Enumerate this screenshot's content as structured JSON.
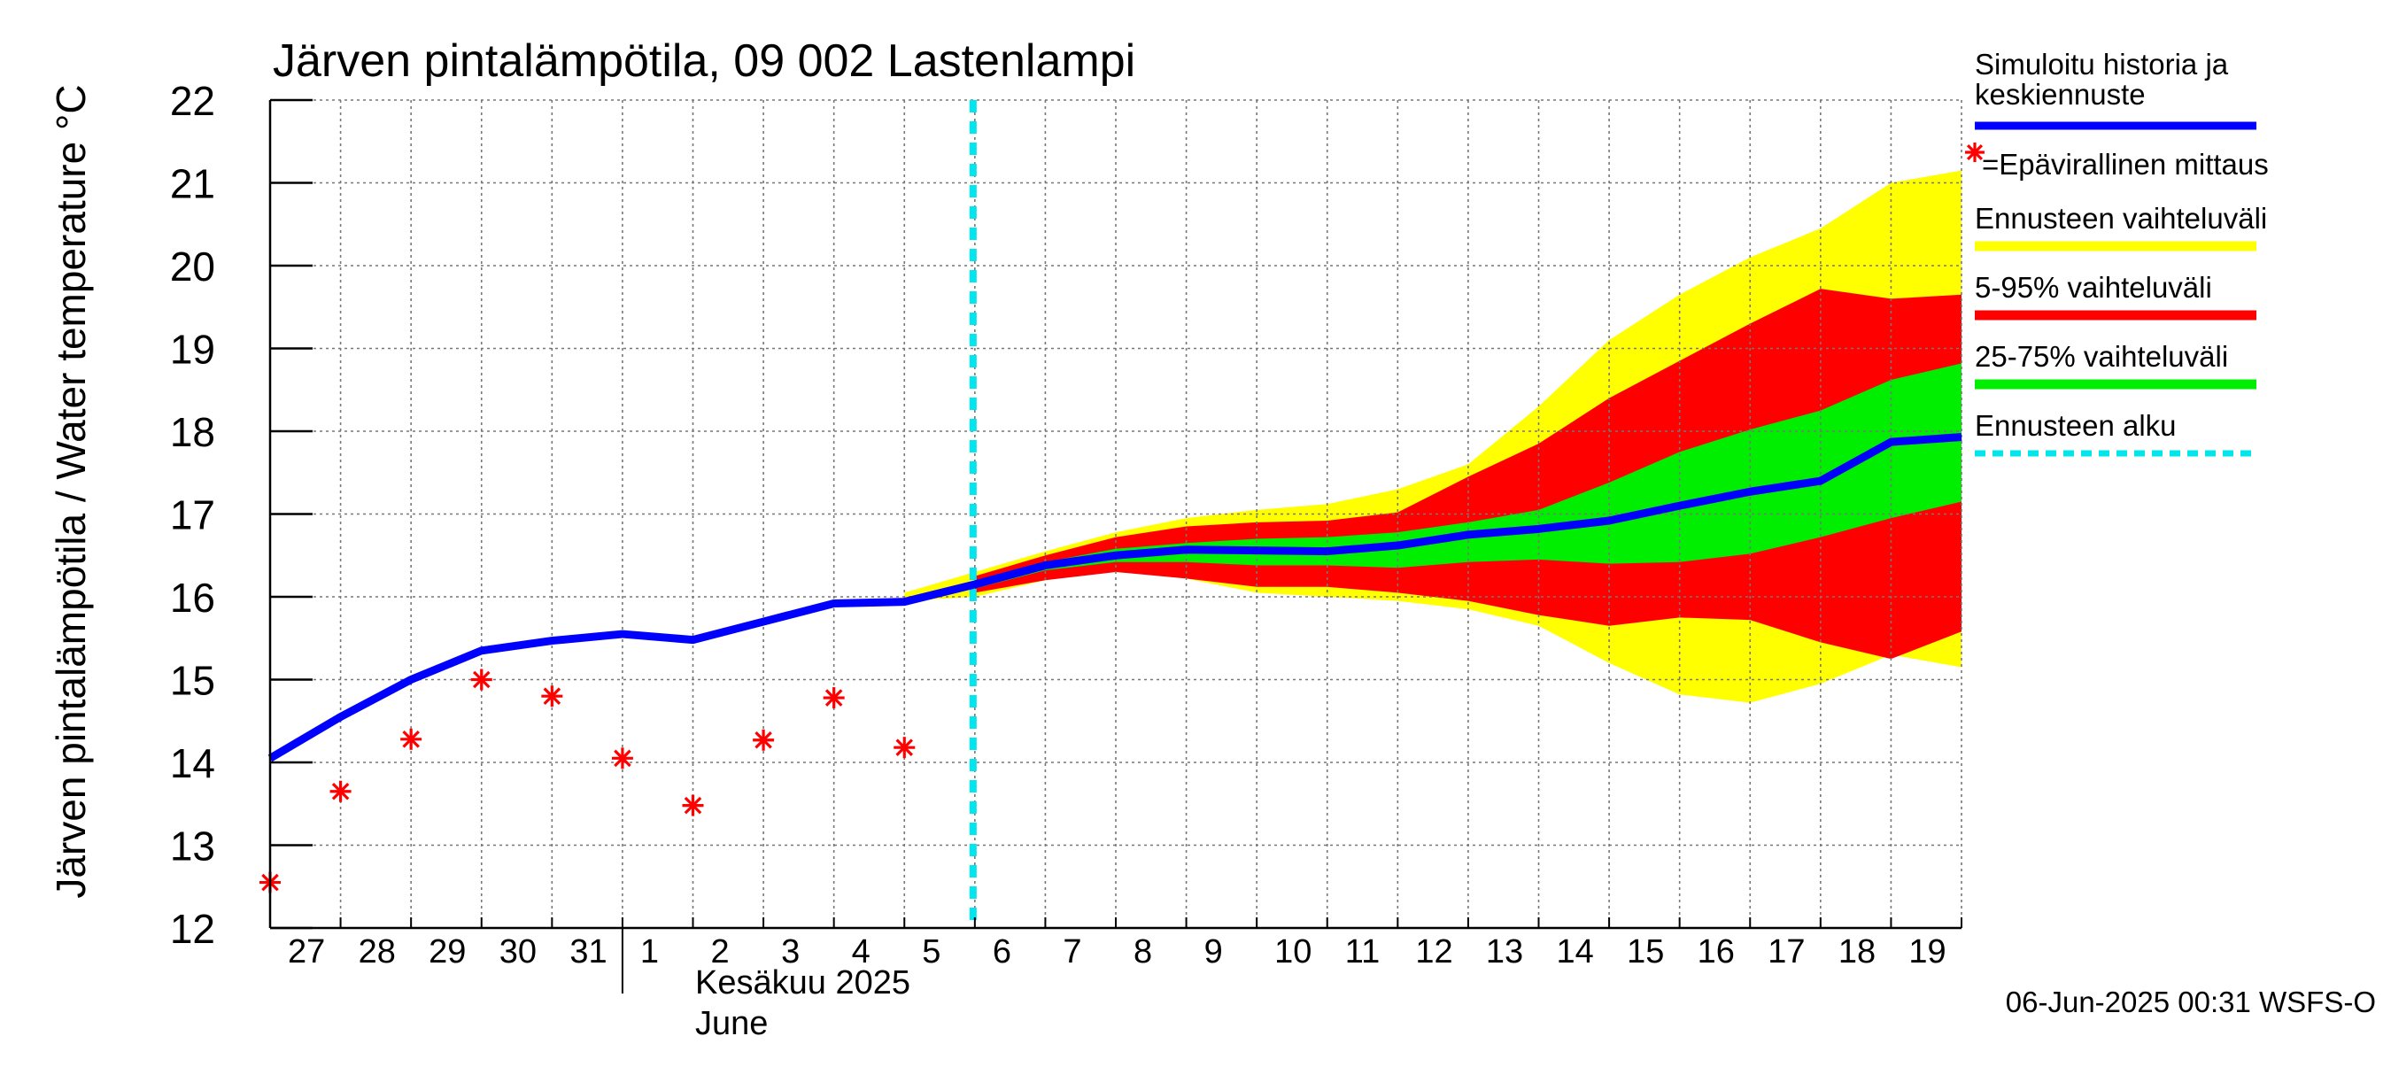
{
  "chart_data": {
    "type": "line",
    "title": "Järven pintalämpötila, 09 002 Lastenlampi",
    "ylabel": "Järven pintalämpötila / Water temperature °C",
    "xlabel_month": "Kesäkuu  2025",
    "xlabel_month_en": "June",
    "footer": "06-Jun-2025 00:31 WSFS-O",
    "ylim": [
      12,
      22
    ],
    "yticks": [
      "12",
      "13",
      "14",
      "15",
      "16",
      "17",
      "18",
      "19",
      "20",
      "21",
      "22"
    ],
    "xticks": [
      "27",
      "28",
      "29",
      "30",
      "31",
      "1",
      "2",
      "3",
      "4",
      "5",
      "6",
      "7",
      "8",
      "9",
      "10",
      "11",
      "12",
      "13",
      "14",
      "15",
      "16",
      "17",
      "18",
      "19"
    ],
    "grid": true,
    "forecast_start_index": 10,
    "legend": {
      "placement": "right",
      "entries": [
        {
          "label": "Simuloitu historia ja keskiennuste",
          "color": "#0000ff",
          "style": "line"
        },
        {
          "label": "=Epävirallinen mittaus",
          "color": "#ff0000",
          "style": "marker"
        },
        {
          "label": "Ennusteen vaihteluväli",
          "color": "#ffff00",
          "style": "band"
        },
        {
          "label": "5-95% vaihteluväli",
          "color": "#ff0000",
          "style": "band"
        },
        {
          "label": "25-75% vaihteluväli",
          "color": "#00ee00",
          "style": "band"
        },
        {
          "label": "Ennusteen alku",
          "color": "#00e5ee",
          "style": "dashed"
        }
      ]
    },
    "series": [
      {
        "name": "Simuloitu historia ja keskiennuste",
        "x": [
          0,
          1,
          2,
          3,
          4,
          5,
          6,
          7,
          8,
          9,
          10,
          11,
          12,
          13,
          14,
          15,
          16,
          17,
          18,
          19,
          20,
          21,
          22,
          23,
          24
        ],
        "values": [
          14.05,
          14.55,
          15.0,
          15.35,
          15.47,
          15.55,
          15.48,
          15.7,
          15.92,
          15.94,
          16.15,
          16.38,
          16.5,
          16.57,
          16.56,
          16.55,
          16.62,
          16.75,
          16.82,
          16.92,
          17.1,
          17.27,
          17.4,
          17.87,
          17.93
        ]
      },
      {
        "name": "Epävirallinen mittaus",
        "x": [
          0,
          1,
          2,
          3,
          4,
          5,
          6,
          7,
          8,
          9
        ],
        "values": [
          12.55,
          13.65,
          14.28,
          15.0,
          14.8,
          14.05,
          13.48,
          14.27,
          14.78,
          14.18
        ]
      }
    ],
    "bands": [
      {
        "name": "Ennusteen vaihteluväli",
        "color": "#ffff00",
        "x": [
          9,
          10,
          11,
          12,
          13,
          14,
          15,
          16,
          17,
          18,
          19,
          20,
          21,
          22,
          23,
          24
        ],
        "upper": [
          16.05,
          16.3,
          16.55,
          16.78,
          16.95,
          17.05,
          17.12,
          17.3,
          17.6,
          18.3,
          19.1,
          19.65,
          20.1,
          20.45,
          21.0,
          21.15
        ],
        "lower": [
          15.95,
          16.0,
          16.2,
          16.32,
          16.22,
          16.05,
          16.0,
          15.95,
          15.85,
          15.65,
          15.2,
          14.82,
          14.72,
          14.95,
          15.3,
          15.15
        ]
      },
      {
        "name": "5-95% vaihteluväli",
        "color": "#ff0000",
        "x": [
          10,
          11,
          12,
          13,
          14,
          15,
          16,
          17,
          18,
          19,
          20,
          21,
          22,
          23,
          24
        ],
        "upper": [
          16.25,
          16.5,
          16.72,
          16.85,
          16.9,
          16.92,
          17.02,
          17.45,
          17.85,
          18.4,
          18.85,
          19.3,
          19.72,
          19.6,
          19.65
        ],
        "lower": [
          16.05,
          16.2,
          16.3,
          16.22,
          16.12,
          16.12,
          16.05,
          15.95,
          15.78,
          15.65,
          15.75,
          15.72,
          15.45,
          15.25,
          15.58
        ]
      },
      {
        "name": "25-75% vaihteluväli",
        "color": "#00ee00",
        "x": [
          10,
          11,
          12,
          13,
          14,
          15,
          16,
          17,
          18,
          19,
          20,
          21,
          22,
          23,
          24
        ],
        "upper": [
          16.18,
          16.42,
          16.58,
          16.65,
          16.7,
          16.72,
          16.78,
          16.9,
          17.05,
          17.38,
          17.75,
          18.02,
          18.25,
          18.62,
          18.82
        ],
        "lower": [
          16.1,
          16.32,
          16.42,
          16.42,
          16.38,
          16.38,
          16.35,
          16.42,
          16.45,
          16.4,
          16.42,
          16.52,
          16.72,
          16.95,
          17.15
        ]
      }
    ]
  }
}
